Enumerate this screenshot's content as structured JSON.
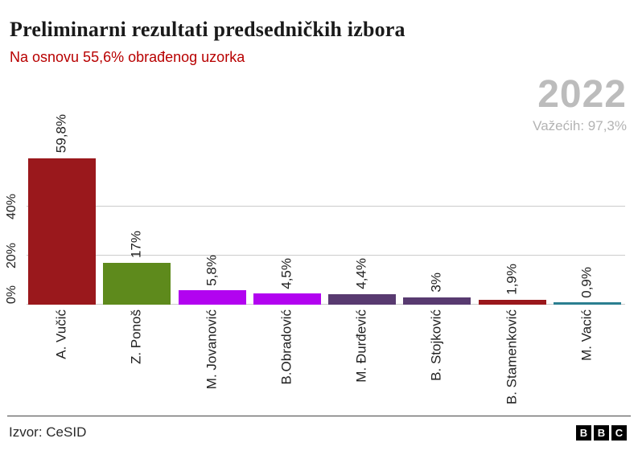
{
  "header": {
    "title": "Preliminarni rezultati predsedničkih izbora",
    "subtitle": "Na osnovu 55,6% obrađenog uzorka",
    "year": "2022",
    "valid_votes": "Važećih: 97,3%"
  },
  "chart_data": {
    "type": "bar",
    "title": "Preliminarni rezultati predsedničkih izbora",
    "subtitle": "Na osnovu 55,6% obrađenog uzorka",
    "categories": [
      "A. Vučić",
      "Z. Ponoš",
      "M. Jovanović",
      "B.Obradović",
      "M. Đurđević",
      "B. Stojković",
      "B. Stamenković",
      "M. Vacić"
    ],
    "values": [
      59.8,
      17,
      5.8,
      4.5,
      4.4,
      3,
      1.9,
      0.9
    ],
    "value_labels": [
      "59,8%",
      "17%",
      "5,8%",
      "4,5%",
      "4,4%",
      "3%",
      "1,9%",
      "0,9%"
    ],
    "bar_colors": [
      "#9a181c",
      "#5e8a1c",
      "#b203f0",
      "#b203f0",
      "#583a70",
      "#583a70",
      "#9a181c",
      "#2b7f90"
    ],
    "yticks": [
      {
        "label": "0%",
        "value": 0
      },
      {
        "label": "20%",
        "value": 20
      },
      {
        "label": "40%",
        "value": 40
      }
    ],
    "ylim": [
      0,
      65
    ],
    "xlabel": "",
    "ylabel": "",
    "grid": "horizontal",
    "legend": "none",
    "value_label_rotation": -90,
    "category_label_rotation": -90
  },
  "footer": {
    "source": "Izvor: CeSID",
    "logo_letters": [
      "B",
      "B",
      "C"
    ]
  },
  "colors": {
    "subtitle_red": "#b80000",
    "muted_gray": "#bcbcbc",
    "gridline": "#cccccc",
    "text": "#222222",
    "footer_line": "#444444"
  }
}
